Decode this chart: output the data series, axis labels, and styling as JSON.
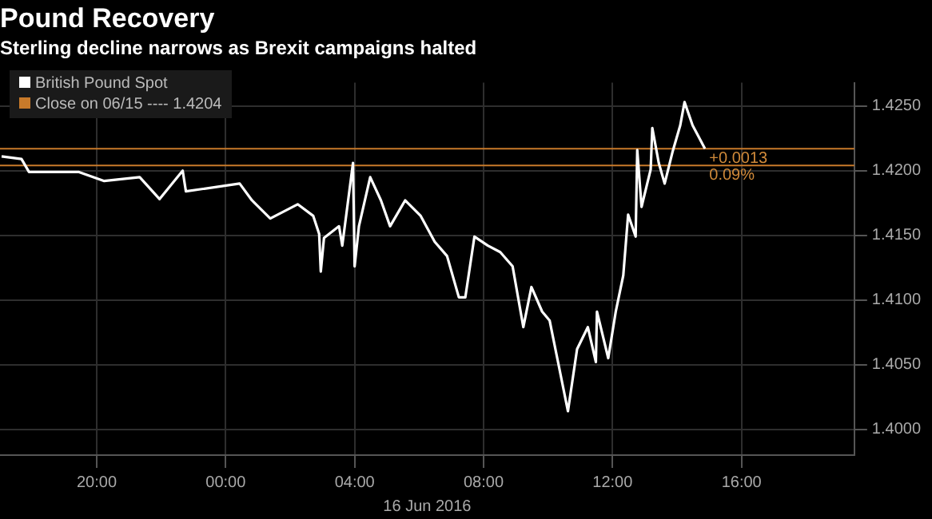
{
  "chart_data": {
    "type": "line",
    "title": "Pound Recovery",
    "subtitle": "Sterling decline narrows as Brexit campaigns halted",
    "xlabel": "16 Jun 2016",
    "x": [
      "2016-06-15T17:03",
      "2016-06-15T17:40",
      "2016-06-15T17:54",
      "2016-06-15T19:26",
      "2016-06-15T20:14",
      "2016-06-15T21:20",
      "2016-06-15T21:57",
      "2016-06-15T22:40",
      "2016-06-15T22:46",
      "2016-06-16T00:26",
      "2016-06-16T00:49",
      "2016-06-16T01:23",
      "2016-06-16T02:14",
      "2016-06-16T02:43",
      "2016-06-16T02:54",
      "2016-06-16T02:57",
      "2016-06-16T03:03",
      "2016-06-16T03:31",
      "2016-06-16T03:37",
      "2016-06-16T03:57",
      "2016-06-16T04:00",
      "2016-06-16T04:08",
      "2016-06-16T04:29",
      "2016-06-16T04:49",
      "2016-06-16T05:06",
      "2016-06-16T05:34",
      "2016-06-16T06:03",
      "2016-06-16T06:29",
      "2016-06-16T06:52",
      "2016-06-16T07:14",
      "2016-06-16T07:26",
      "2016-06-16T07:43",
      "2016-06-16T08:08",
      "2016-06-16T08:31",
      "2016-06-16T08:54",
      "2016-06-16T09:14",
      "2016-06-16T09:29",
      "2016-06-16T09:49",
      "2016-06-16T10:03",
      "2016-06-16T10:20",
      "2016-06-16T10:37",
      "2016-06-16T10:54",
      "2016-06-16T11:14",
      "2016-06-16T11:29",
      "2016-06-16T11:31",
      "2016-06-16T11:52",
      "2016-06-16T12:06",
      "2016-06-16T12:20",
      "2016-06-16T12:29",
      "2016-06-16T12:43",
      "2016-06-16T12:46",
      "2016-06-16T12:54",
      "2016-06-16T13:11",
      "2016-06-16T13:14",
      "2016-06-16T13:26",
      "2016-06-16T13:37",
      "2016-06-16T13:52",
      "2016-06-16T14:06",
      "2016-06-16T14:14",
      "2016-06-16T14:29",
      "2016-06-16T14:43",
      "2016-06-16T14:52"
    ],
    "series": [
      {
        "name": "British Pound Spot",
        "color": "#ffffff",
        "values": [
          1.4211,
          1.4209,
          1.4199,
          1.4199,
          1.4192,
          1.4195,
          1.4178,
          1.42,
          1.4184,
          1.419,
          1.4177,
          1.4163,
          1.4174,
          1.4165,
          1.4151,
          1.4122,
          1.4148,
          1.4157,
          1.4142,
          1.4206,
          1.4126,
          1.4157,
          1.4195,
          1.4177,
          1.4157,
          1.4177,
          1.4165,
          1.4145,
          1.4134,
          1.4102,
          1.4102,
          1.4149,
          1.4142,
          1.4137,
          1.4126,
          1.4079,
          1.411,
          1.4091,
          1.4084,
          1.4049,
          1.4014,
          1.4062,
          1.4079,
          1.4052,
          1.4091,
          1.4055,
          1.4091,
          1.4119,
          1.4166,
          1.4149,
          1.4216,
          1.4172,
          1.4201,
          1.4233,
          1.4206,
          1.419,
          1.4215,
          1.4235,
          1.4253,
          1.4235,
          1.4224,
          1.4217
        ]
      }
    ],
    "xlim": [
      "2016-06-15T17:00",
      "2016-06-16T19:30"
    ],
    "xticks": [
      {
        "value": "2016-06-15T20:00",
        "label": "20:00"
      },
      {
        "value": "2016-06-16T00:00",
        "label": "00:00"
      },
      {
        "value": "2016-06-16T04:00",
        "label": "04:00"
      },
      {
        "value": "2016-06-16T08:00",
        "label": "08:00"
      },
      {
        "value": "2016-06-16T12:00",
        "label": "12:00"
      },
      {
        "value": "2016-06-16T16:00",
        "label": "16:00"
      }
    ],
    "ylim": [
      1.398,
      1.4268
    ],
    "yticks": [
      {
        "value": 1.4,
        "label": "1.4000"
      },
      {
        "value": 1.405,
        "label": "1.4050"
      },
      {
        "value": 1.41,
        "label": "1.4100"
      },
      {
        "value": 1.415,
        "label": "1.4150"
      },
      {
        "value": 1.42,
        "label": "1.4200"
      },
      {
        "value": 1.425,
        "label": "1.4250"
      }
    ],
    "ref_lines": [
      {
        "axis": "y",
        "value": 1.4204,
        "label": "Close on 06/15 ---- 1.4204",
        "color": "#c87a2a"
      },
      {
        "axis": "y",
        "value": 1.4217,
        "color": "#c87a2a"
      }
    ],
    "annotations": [
      {
        "text": "+0.0013",
        "x": "2016-06-16T14:54",
        "y": 1.4217
      },
      {
        "text": "0.09%",
        "x": "2016-06-16T14:54",
        "y": 1.4204
      }
    ],
    "grid": true,
    "legend": "top left",
    "marker": "none",
    "line_style": "solid"
  }
}
